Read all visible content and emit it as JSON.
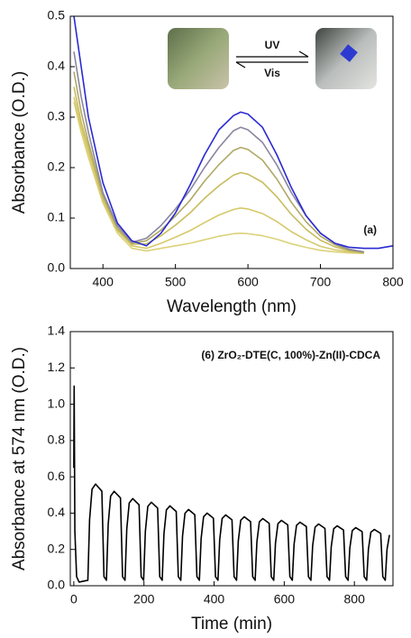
{
  "chart_data": [
    {
      "type": "line",
      "xlabel": "Wavelength (nm)",
      "ylabel": "Absorbance (O.D.)",
      "annotation": "(a)",
      "inset_labels": [
        "UV",
        "Vis"
      ],
      "xlim": [
        355,
        800
      ],
      "ylim": [
        0,
        0.5
      ],
      "xticks": [
        400,
        500,
        600,
        700,
        800
      ],
      "yticks": [
        {
          "value": 0,
          "label": "0.0"
        },
        0.1,
        0.2,
        0.3,
        0.4,
        0.5
      ],
      "x": [
        360,
        370,
        380,
        400,
        420,
        440,
        460,
        480,
        500,
        520,
        540,
        560,
        580,
        590,
        600,
        620,
        640,
        660,
        680,
        700,
        720,
        740,
        760,
        780,
        800
      ],
      "series": [
        {
          "color": "#dcd27a",
          "values": [
            0.33,
            0.27,
            0.22,
            0.13,
            0.07,
            0.04,
            0.035,
            0.04,
            0.045,
            0.05,
            0.057,
            0.064,
            0.069,
            0.07,
            0.069,
            0.065,
            0.058,
            0.049,
            0.042,
            0.036,
            0.033,
            0.031,
            0.03,
            null,
            null
          ]
        },
        {
          "color": "#d6c96a",
          "values": [
            0.34,
            0.28,
            0.23,
            0.135,
            0.075,
            0.045,
            0.04,
            0.05,
            0.062,
            0.075,
            0.091,
            0.106,
            0.117,
            0.12,
            0.118,
            0.109,
            0.093,
            0.073,
            0.057,
            0.044,
            0.037,
            0.033,
            0.03,
            null,
            null
          ]
        },
        {
          "color": "#c8bc5e",
          "values": [
            0.36,
            0.29,
            0.24,
            0.14,
            0.078,
            0.048,
            0.049,
            0.065,
            0.086,
            0.11,
            0.139,
            0.164,
            0.185,
            0.19,
            0.187,
            0.171,
            0.142,
            0.107,
            0.078,
            0.056,
            0.043,
            0.035,
            0.031,
            null,
            null
          ]
        },
        {
          "color": "#b0a866",
          "values": [
            0.39,
            0.31,
            0.25,
            0.145,
            0.08,
            0.05,
            0.055,
            0.076,
            0.104,
            0.135,
            0.173,
            0.206,
            0.234,
            0.24,
            0.236,
            0.215,
            0.177,
            0.131,
            0.093,
            0.064,
            0.047,
            0.036,
            0.032,
            null,
            null
          ]
        },
        {
          "color": "#8a86a0",
          "values": [
            0.43,
            0.34,
            0.27,
            0.15,
            0.085,
            0.052,
            0.06,
            0.085,
            0.118,
            0.155,
            0.2,
            0.24,
            0.273,
            0.28,
            0.275,
            0.25,
            0.205,
            0.15,
            0.105,
            0.07,
            0.05,
            0.038,
            0.033,
            null,
            null
          ]
        },
        {
          "color": "#2a2ad2",
          "values": [
            0.5,
            0.4,
            0.3,
            0.17,
            0.09,
            0.055,
            0.045,
            0.07,
            0.11,
            0.165,
            0.225,
            0.275,
            0.303,
            0.31,
            0.306,
            0.28,
            0.225,
            0.16,
            0.105,
            0.07,
            0.05,
            0.042,
            0.04,
            0.04,
            0.045
          ]
        }
      ]
    },
    {
      "type": "line",
      "xlabel": "Time (min)",
      "ylabel": "Absorbance at 574 nm (O.D.)",
      "annotation": "(6) ZrO₂-DTE(C, 100%)-Zn(II)-CDCA",
      "xlim": [
        -10,
        910
      ],
      "ylim": [
        0,
        1.4
      ],
      "xticks": [
        0,
        200,
        400,
        600,
        800
      ],
      "yticks": [
        {
          "value": 0,
          "label": "0.0"
        },
        0.2,
        0.4,
        0.6,
        0.8,
        {
          "value": 1,
          "label": "1.0"
        },
        1.2,
        1.4
      ],
      "x": [
        0,
        1,
        3,
        8,
        15,
        40,
        45,
        52,
        62,
        80,
        86,
        93,
        98,
        105,
        115,
        133,
        139,
        146,
        151,
        158,
        168,
        186,
        192,
        199,
        204,
        211,
        221,
        239,
        245,
        252,
        257,
        264,
        274,
        292,
        298,
        305,
        310,
        317,
        327,
        345,
        351,
        358,
        363,
        370,
        380,
        398,
        404,
        411,
        416,
        423,
        433,
        451,
        457,
        464,
        469,
        476,
        486,
        504,
        510,
        517,
        522,
        529,
        539,
        557,
        563,
        570,
        575,
        582,
        592,
        610,
        616,
        623,
        628,
        635,
        645,
        663,
        669,
        676,
        681,
        688,
        698,
        716,
        722,
        729,
        734,
        741,
        751,
        769,
        775,
        782,
        787,
        794,
        804,
        822,
        828,
        835,
        840,
        847,
        857,
        875,
        881,
        888,
        893,
        900
      ],
      "series": [
        {
          "color": "#000000",
          "values": [
            0.65,
            1.1,
            0.3,
            0.05,
            0.02,
            0.03,
            0.364,
            0.532,
            0.56,
            0.521,
            0.05,
            0.03,
            0.338,
            0.494,
            0.52,
            0.484,
            0.05,
            0.03,
            0.312,
            0.456,
            0.48,
            0.446,
            0.05,
            0.03,
            0.299,
            0.437,
            0.46,
            0.428,
            0.05,
            0.03,
            0.286,
            0.418,
            0.44,
            0.409,
            0.05,
            0.03,
            0.273,
            0.399,
            0.42,
            0.391,
            0.05,
            0.03,
            0.26,
            0.38,
            0.4,
            0.372,
            0.05,
            0.03,
            0.254,
            0.371,
            0.39,
            0.363,
            0.05,
            0.03,
            0.247,
            0.361,
            0.38,
            0.353,
            0.05,
            0.03,
            0.241,
            0.352,
            0.37,
            0.344,
            0.05,
            0.03,
            0.234,
            0.342,
            0.36,
            0.335,
            0.05,
            0.03,
            0.228,
            0.333,
            0.35,
            0.326,
            0.05,
            0.03,
            0.221,
            0.323,
            0.34,
            0.316,
            0.05,
            0.03,
            0.215,
            0.314,
            0.33,
            0.307,
            0.05,
            0.03,
            0.208,
            0.304,
            0.32,
            0.298,
            0.05,
            0.03,
            0.202,
            0.295,
            0.31,
            0.288,
            0.05,
            0.03,
            0.2,
            0.28
          ]
        }
      ]
    }
  ]
}
